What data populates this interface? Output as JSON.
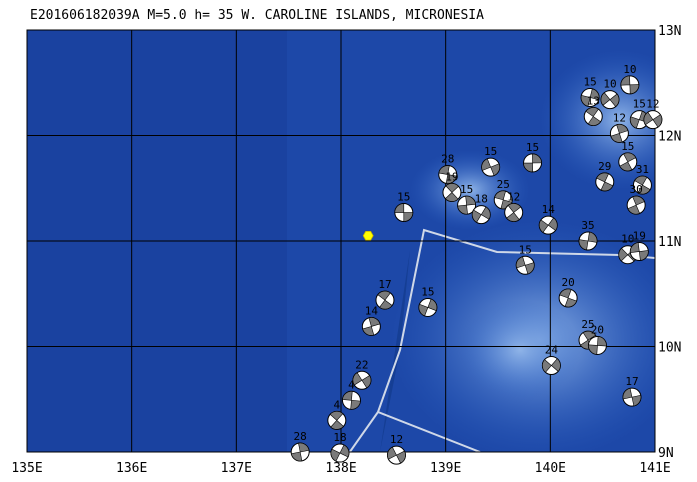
{
  "title": "E201606182039A M=5.0 h= 35 W. CAROLINE ISLANDS, MICRONESIA",
  "lon_ticks": [
    {
      "value": 135,
      "label": "135E"
    },
    {
      "value": 136,
      "label": "136E"
    },
    {
      "value": 137,
      "label": "137E"
    },
    {
      "value": 138,
      "label": "138E"
    },
    {
      "value": 139,
      "label": "139E"
    },
    {
      "value": 140,
      "label": "140E"
    },
    {
      "value": 141,
      "label": "141E"
    }
  ],
  "lat_ticks": [
    {
      "value": 9,
      "label": "9N"
    },
    {
      "value": 10,
      "label": "10N"
    },
    {
      "value": 11,
      "label": "11N"
    },
    {
      "value": 12,
      "label": "12N"
    },
    {
      "value": 13,
      "label": "13N"
    }
  ],
  "epicenter": {
    "lon": 138.26,
    "lat": 11.05
  },
  "events": [
    {
      "label": "15",
      "lon": 138.6,
      "lat": 11.27
    },
    {
      "label": "17",
      "lon": 138.42,
      "lat": 10.44
    },
    {
      "label": "14",
      "lon": 138.29,
      "lat": 10.19
    },
    {
      "label": "15",
      "lon": 138.83,
      "lat": 10.37
    },
    {
      "label": "22",
      "lon": 138.2,
      "lat": 9.68
    },
    {
      "label": "4",
      "lon": 138.1,
      "lat": 9.49
    },
    {
      "label": "4",
      "lon": 137.96,
      "lat": 9.3
    },
    {
      "label": "28",
      "lon": 137.61,
      "lat": 9.0
    },
    {
      "label": "18",
      "lon": 137.99,
      "lat": 8.99
    },
    {
      "label": "12",
      "lon": 138.53,
      "lat": 8.97
    },
    {
      "label": "28",
      "lon": 139.02,
      "lat": 11.63
    },
    {
      "label": "19",
      "lon": 139.06,
      "lat": 11.46
    },
    {
      "label": "15",
      "lon": 139.2,
      "lat": 11.34
    },
    {
      "label": "18",
      "lon": 139.34,
      "lat": 11.25
    },
    {
      "label": "15",
      "lon": 139.43,
      "lat": 11.7
    },
    {
      "label": "25",
      "lon": 139.55,
      "lat": 11.39
    },
    {
      "label": "12",
      "lon": 139.65,
      "lat": 11.27
    },
    {
      "label": "15",
      "lon": 139.83,
      "lat": 11.74
    },
    {
      "label": "14",
      "lon": 139.98,
      "lat": 11.15
    },
    {
      "label": "15",
      "lon": 139.76,
      "lat": 10.77
    },
    {
      "label": "20",
      "lon": 140.17,
      "lat": 10.46
    },
    {
      "label": "25",
      "lon": 140.36,
      "lat": 10.06
    },
    {
      "label": "20",
      "lon": 140.45,
      "lat": 10.01
    },
    {
      "label": "24",
      "lon": 140.01,
      "lat": 9.82
    },
    {
      "label": "17",
      "lon": 140.78,
      "lat": 9.52
    },
    {
      "label": "29",
      "lon": 140.52,
      "lat": 11.56
    },
    {
      "label": "15",
      "lon": 140.74,
      "lat": 11.75
    },
    {
      "label": "35",
      "lon": 140.36,
      "lat": 11.0
    },
    {
      "label": "10",
      "lon": 140.74,
      "lat": 10.87
    },
    {
      "label": "19",
      "lon": 140.85,
      "lat": 10.9
    },
    {
      "label": "31",
      "lon": 140.88,
      "lat": 11.53
    },
    {
      "label": "30",
      "lon": 140.82,
      "lat": 11.34
    },
    {
      "label": "15",
      "lon": 140.38,
      "lat": 12.36
    },
    {
      "label": "10",
      "lon": 140.57,
      "lat": 12.34
    },
    {
      "label": "10",
      "lon": 140.76,
      "lat": 12.48
    },
    {
      "label": "13",
      "lon": 140.41,
      "lat": 12.18
    },
    {
      "label": "12",
      "lon": 140.66,
      "lat": 12.02
    },
    {
      "label": "15",
      "lon": 140.85,
      "lat": 12.15
    },
    {
      "label": "12",
      "lon": 140.98,
      "lat": 12.15
    }
  ]
}
